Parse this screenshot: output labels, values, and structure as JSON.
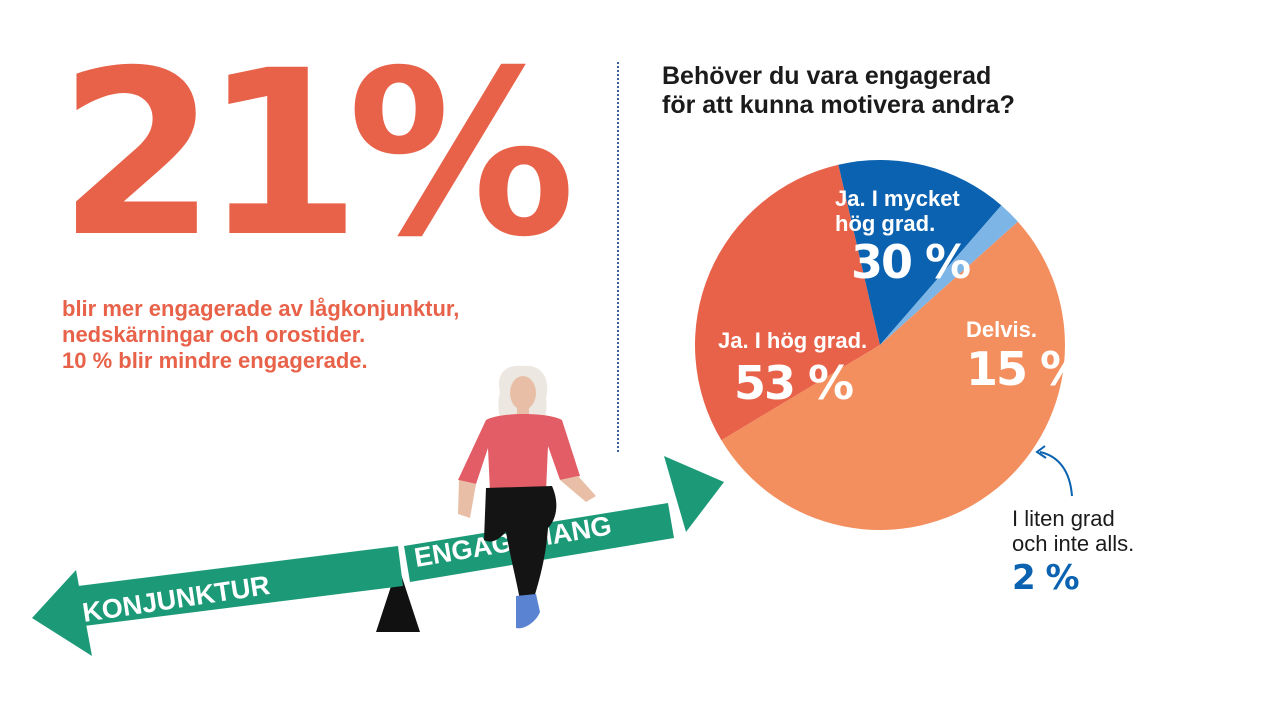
{
  "headline": {
    "value": "21%",
    "lines": [
      "blir mer engagerade av lågkonjunktur,",
      "nedskärningar och orostider.",
      "10 % blir mindre engagerade."
    ]
  },
  "illustration": {
    "arrow_left_text": "KONJUNKTUR",
    "arrow_right_text": "ENGAGEMANG"
  },
  "colors": {
    "accent_red": "#e8624a",
    "salmon": "#f38f5e",
    "blue": "#0a62b0",
    "light_blue": "#7db6e6",
    "teal": "#1c9a78",
    "text_dark": "#1b1b1b"
  },
  "chart_data": {
    "type": "pie",
    "title_lines": [
      "Behöver du vara engagerad",
      "för att kunna motivera andra?"
    ],
    "slices": [
      {
        "label_lines": [
          "Ja. I mycket",
          "hög grad."
        ],
        "value": 30,
        "value_label": "30 %",
        "color": "#e8624a"
      },
      {
        "label_lines": [
          "Delvis."
        ],
        "value": 15,
        "value_label": "15 %",
        "color": "#0a62b0"
      },
      {
        "label_lines": [
          "I liten grad",
          "och inte alls."
        ],
        "value": 2,
        "value_label": "2 %",
        "color": "#7db6e6"
      },
      {
        "label_lines": [
          "Ja. I hög grad."
        ],
        "value": 53,
        "value_label": "53 %",
        "color": "#f38f5e"
      }
    ]
  }
}
